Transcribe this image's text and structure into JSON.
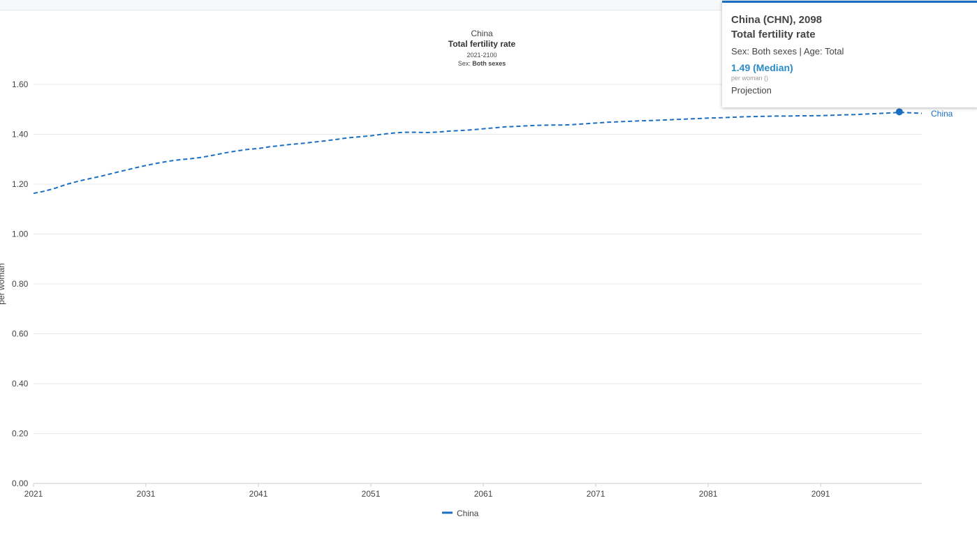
{
  "chart_data": {
    "type": "line",
    "title": "Total fertility rate",
    "country_heading": "China",
    "period": "2021-2100",
    "subtitle_sex_label": "Sex:",
    "subtitle_sex_value": "Both sexes",
    "ylabel": "per woman",
    "xlabel": "",
    "ylim": [
      0,
      1.6
    ],
    "yticks": [
      "0.00",
      "0.20",
      "0.40",
      "0.60",
      "0.80",
      "1.00",
      "1.20",
      "1.40",
      "1.60"
    ],
    "xticks": [
      "2021",
      "2031",
      "2041",
      "2051",
      "2061",
      "2071",
      "2081",
      "2091"
    ],
    "xlim": [
      2021,
      2100
    ],
    "grid": true,
    "legend_position": "bottom",
    "series": [
      {
        "name": "China",
        "color": "#1a6fc4",
        "style": "dashed",
        "x": [
          2021,
          2022,
          2023,
          2024,
          2025,
          2026,
          2027,
          2028,
          2029,
          2030,
          2031,
          2032,
          2033,
          2034,
          2035,
          2036,
          2037,
          2038,
          2039,
          2040,
          2041,
          2042,
          2043,
          2044,
          2045,
          2046,
          2047,
          2048,
          2049,
          2050,
          2051,
          2052,
          2053,
          2054,
          2055,
          2056,
          2057,
          2058,
          2059,
          2060,
          2061,
          2062,
          2063,
          2064,
          2065,
          2066,
          2067,
          2068,
          2069,
          2070,
          2071,
          2072,
          2073,
          2074,
          2075,
          2076,
          2077,
          2078,
          2079,
          2080,
          2081,
          2082,
          2083,
          2084,
          2085,
          2086,
          2087,
          2088,
          2089,
          2090,
          2091,
          2092,
          2093,
          2094,
          2095,
          2096,
          2097,
          2098,
          2099,
          2100
        ],
        "values": [
          1.163,
          1.172,
          1.185,
          1.2,
          1.212,
          1.222,
          1.232,
          1.243,
          1.254,
          1.265,
          1.275,
          1.284,
          1.292,
          1.298,
          1.302,
          1.308,
          1.316,
          1.325,
          1.333,
          1.339,
          1.343,
          1.35,
          1.355,
          1.36,
          1.364,
          1.369,
          1.374,
          1.38,
          1.386,
          1.39,
          1.394,
          1.4,
          1.405,
          1.408,
          1.408,
          1.407,
          1.409,
          1.413,
          1.415,
          1.418,
          1.422,
          1.426,
          1.43,
          1.432,
          1.434,
          1.436,
          1.437,
          1.437,
          1.439,
          1.442,
          1.445,
          1.448,
          1.45,
          1.452,
          1.454,
          1.455,
          1.457,
          1.459,
          1.461,
          1.463,
          1.465,
          1.466,
          1.468,
          1.47,
          1.471,
          1.472,
          1.473,
          1.473,
          1.474,
          1.474,
          1.475,
          1.476,
          1.478,
          1.479,
          1.481,
          1.483,
          1.485,
          1.488,
          1.486,
          1.484
        ]
      }
    ],
    "end_label": "China",
    "highlight": {
      "x": 2098,
      "value": 1.49
    }
  },
  "tooltip": {
    "title": "China (CHN), 2098",
    "indicator": "Total fertility rate",
    "dims": "Sex: Both sexes | Age: Total",
    "value": "1.49 (Median)",
    "unit": "per woman ()",
    "variant": "Projection"
  },
  "legend": {
    "label": "China"
  }
}
